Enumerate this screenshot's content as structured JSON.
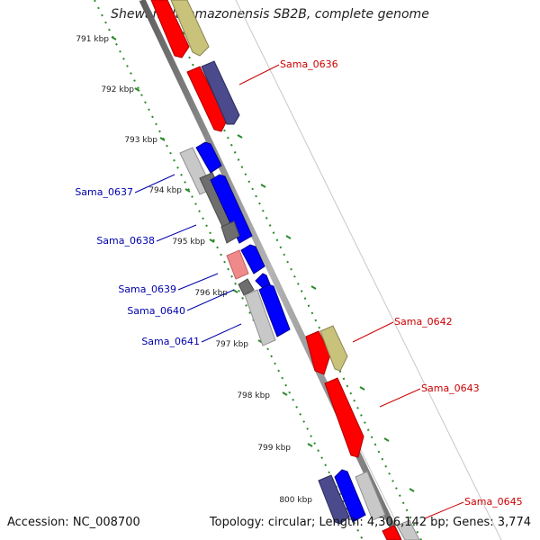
{
  "title": "Shewanella amazonensis SB2B, complete genome",
  "footer": {
    "accession": "Accession: NC_008700",
    "info": "Topology: circular; Length: 4,306,142 bp; Genes: 3,774"
  },
  "colors": {
    "forward_label": "#cc0000",
    "reverse_label": "#0000aa",
    "kbp_dots": "#2a8a2a",
    "backbone": "#8c8c8c",
    "red_gene": "#ff0000",
    "blue_gene": "#0000ff",
    "khaki_gene": "#c8c27a",
    "navy_gene": "#4a4a8c",
    "dark_gray_gene": "#6e6e6e",
    "light_gray_gene": "#c8c8c8",
    "pink_gene": "#f08a8a"
  },
  "kbp_labels": [
    "791 kbp",
    "792 kbp",
    "793 kbp",
    "794 kbp",
    "795 kbp",
    "796 kbp",
    "797 kbp",
    "798 kbp",
    "799 kbp",
    "800 kbp"
  ],
  "gene_labels": {
    "forward": [
      "Sama_0636",
      "Sama_0642",
      "Sama_0643",
      "Sama_0645"
    ],
    "reverse": [
      "Sama_0637",
      "Sama_0638",
      "Sama_0639",
      "Sama_0640",
      "Sama_0641"
    ]
  }
}
